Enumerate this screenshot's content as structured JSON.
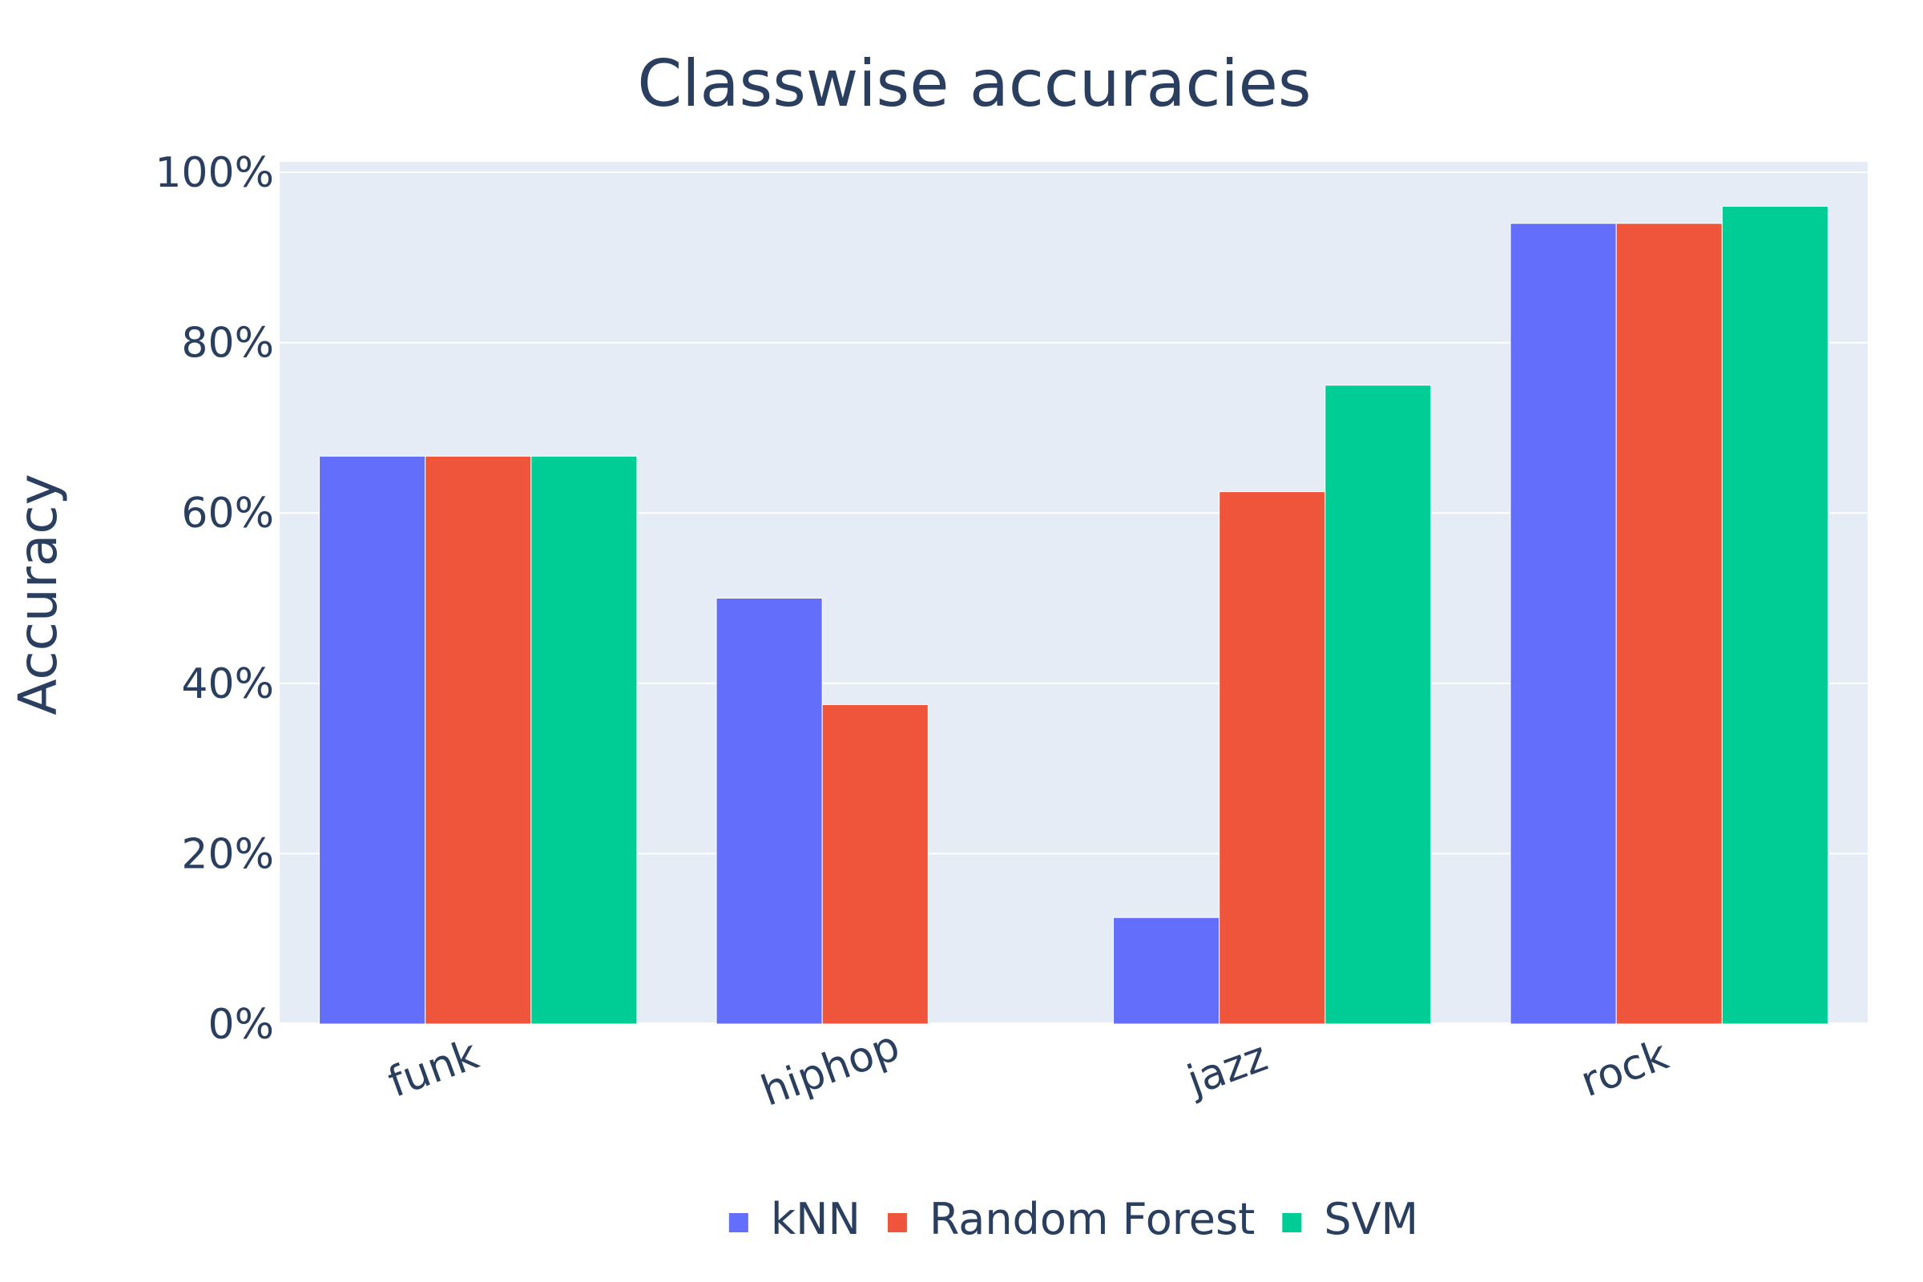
{
  "chart_data": {
    "type": "bar",
    "title": "Classwise accuracies",
    "xlabel": "",
    "ylabel": "Accuracy",
    "categories": [
      "funk",
      "hiphop",
      "jazz",
      "rock"
    ],
    "series": [
      {
        "name": "kNN",
        "values": [
          0.6667,
          0.5,
          0.125,
          0.94
        ]
      },
      {
        "name": "Random Forest",
        "values": [
          0.6667,
          0.375,
          0.625,
          0.94
        ]
      },
      {
        "name": "SVM",
        "values": [
          0.6667,
          0.0,
          0.75,
          0.96
        ]
      }
    ],
    "ylim": [
      0,
      1
    ],
    "yticks": [
      0,
      0.2,
      0.4,
      0.6,
      0.8,
      1.0
    ],
    "ytick_labels": [
      "0%",
      "20%",
      "40%",
      "60%",
      "80%",
      "100%"
    ],
    "grid": true,
    "legend_position": "bottom-center",
    "colors": {
      "kNN": "#636efa",
      "Random Forest": "#ef553b",
      "SVM": "#00cc96",
      "plot_background": "#e5ecf6",
      "gridline": "#ffffff",
      "text": "#2a3f5f"
    }
  }
}
